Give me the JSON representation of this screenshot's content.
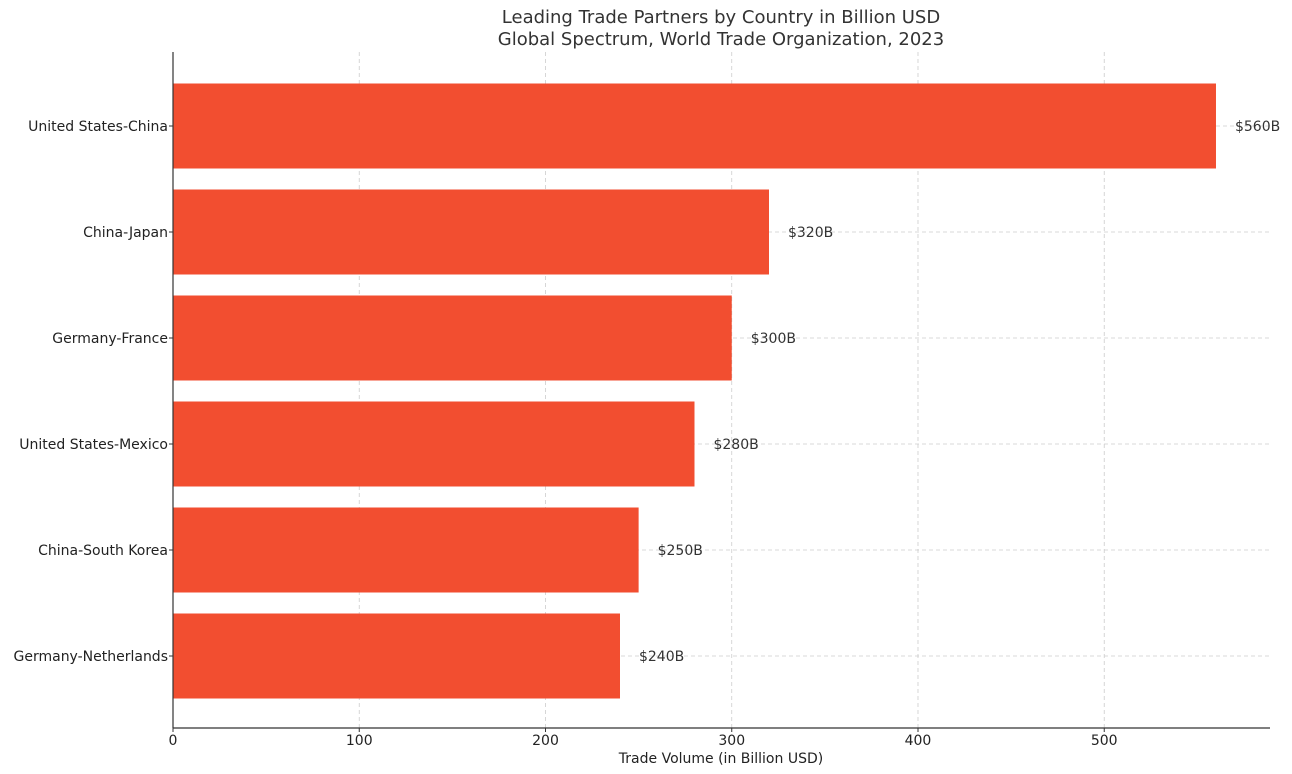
{
  "chart_data": {
    "type": "bar",
    "orientation": "horizontal",
    "title": "Leading Trade Partners by Country in Billion USD",
    "subtitle": "Global Spectrum, World Trade Organization, 2023",
    "xlabel": "Trade Volume (in Billion USD)",
    "ylabel": "",
    "xlim": [
      0,
      589
    ],
    "xticks": [
      0,
      100,
      200,
      300,
      400,
      500
    ],
    "grid": true,
    "bar_color": "#f24e30",
    "categories": [
      "United States-China",
      "China-Japan",
      "Germany-France",
      "United States-Mexico",
      "China-South Korea",
      "Germany-Netherlands"
    ],
    "values": [
      560,
      320,
      300,
      280,
      250,
      240
    ],
    "value_labels": [
      "$560B",
      "$320B",
      "$300B",
      "$280B",
      "$250B",
      "$240B"
    ]
  }
}
